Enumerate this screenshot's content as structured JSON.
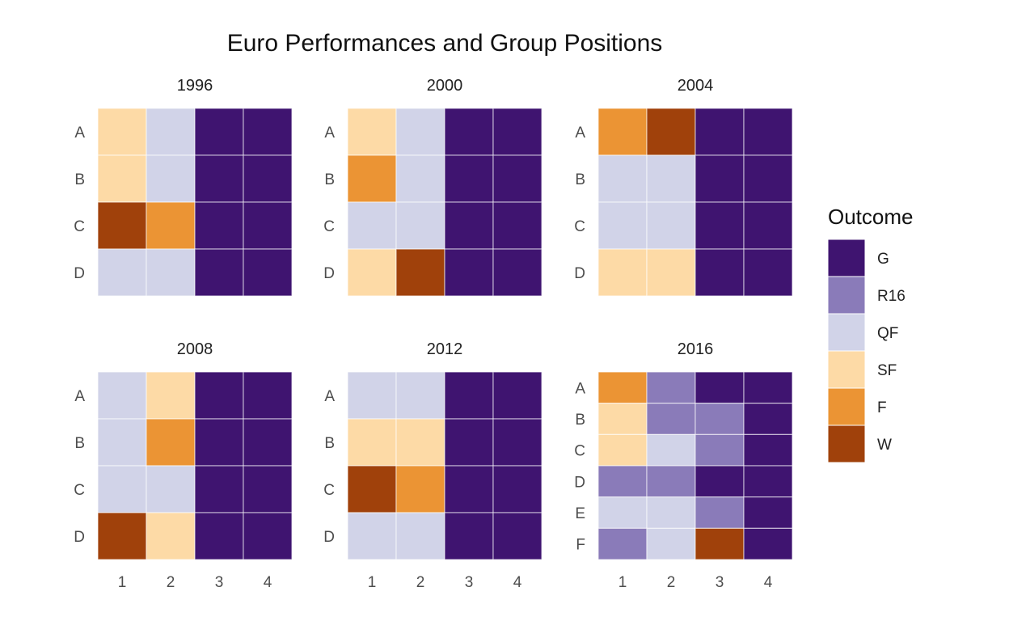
{
  "chart_data": {
    "type": "heatmap",
    "title": "Euro Performances and Group Positions",
    "x_categories": [
      "1",
      "2",
      "3",
      "4"
    ],
    "legend": {
      "title": "Outcome",
      "placement": "right",
      "entries": [
        {
          "key": "G",
          "label": "G",
          "color": "#3f1470"
        },
        {
          "key": "R16",
          "label": "R16",
          "color": "#8a7bb9"
        },
        {
          "key": "QF",
          "label": "QF",
          "color": "#d1d3e8"
        },
        {
          "key": "SF",
          "label": "SF",
          "color": "#fddaa6"
        },
        {
          "key": "F",
          "label": "F",
          "color": "#eb9434"
        },
        {
          "key": "W",
          "label": "W",
          "color": "#a0410b"
        }
      ]
    },
    "panels": [
      {
        "year": "1996",
        "groups": [
          "A",
          "B",
          "C",
          "D"
        ],
        "values": [
          [
            "SF",
            "QF",
            "G",
            "G"
          ],
          [
            "SF",
            "QF",
            "G",
            "G"
          ],
          [
            "W",
            "F",
            "G",
            "G"
          ],
          [
            "QF",
            "QF",
            "G",
            "G"
          ]
        ]
      },
      {
        "year": "2000",
        "groups": [
          "A",
          "B",
          "C",
          "D"
        ],
        "values": [
          [
            "SF",
            "QF",
            "G",
            "G"
          ],
          [
            "F",
            "QF",
            "G",
            "G"
          ],
          [
            "QF",
            "QF",
            "G",
            "G"
          ],
          [
            "SF",
            "W",
            "G",
            "G"
          ]
        ]
      },
      {
        "year": "2004",
        "groups": [
          "A",
          "B",
          "C",
          "D"
        ],
        "values": [
          [
            "F",
            "W",
            "G",
            "G"
          ],
          [
            "QF",
            "QF",
            "G",
            "G"
          ],
          [
            "QF",
            "QF",
            "G",
            "G"
          ],
          [
            "SF",
            "SF",
            "G",
            "G"
          ]
        ]
      },
      {
        "year": "2008",
        "groups": [
          "A",
          "B",
          "C",
          "D"
        ],
        "values": [
          [
            "QF",
            "SF",
            "G",
            "G"
          ],
          [
            "QF",
            "F",
            "G",
            "G"
          ],
          [
            "QF",
            "QF",
            "G",
            "G"
          ],
          [
            "W",
            "SF",
            "G",
            "G"
          ]
        ]
      },
      {
        "year": "2012",
        "groups": [
          "A",
          "B",
          "C",
          "D"
        ],
        "values": [
          [
            "QF",
            "QF",
            "G",
            "G"
          ],
          [
            "SF",
            "SF",
            "G",
            "G"
          ],
          [
            "W",
            "F",
            "G",
            "G"
          ],
          [
            "QF",
            "QF",
            "G",
            "G"
          ]
        ]
      },
      {
        "year": "2016",
        "groups": [
          "A",
          "B",
          "C",
          "D",
          "E",
          "F"
        ],
        "values": [
          [
            "F",
            "R16",
            "G",
            "G"
          ],
          [
            "SF",
            "R16",
            "R16",
            "G"
          ],
          [
            "SF",
            "QF",
            "R16",
            "G"
          ],
          [
            "R16",
            "R16",
            "G",
            "G"
          ],
          [
            "QF",
            "QF",
            "R16",
            "G"
          ],
          [
            "R16",
            "QF",
            "W",
            "G"
          ]
        ]
      }
    ]
  }
}
